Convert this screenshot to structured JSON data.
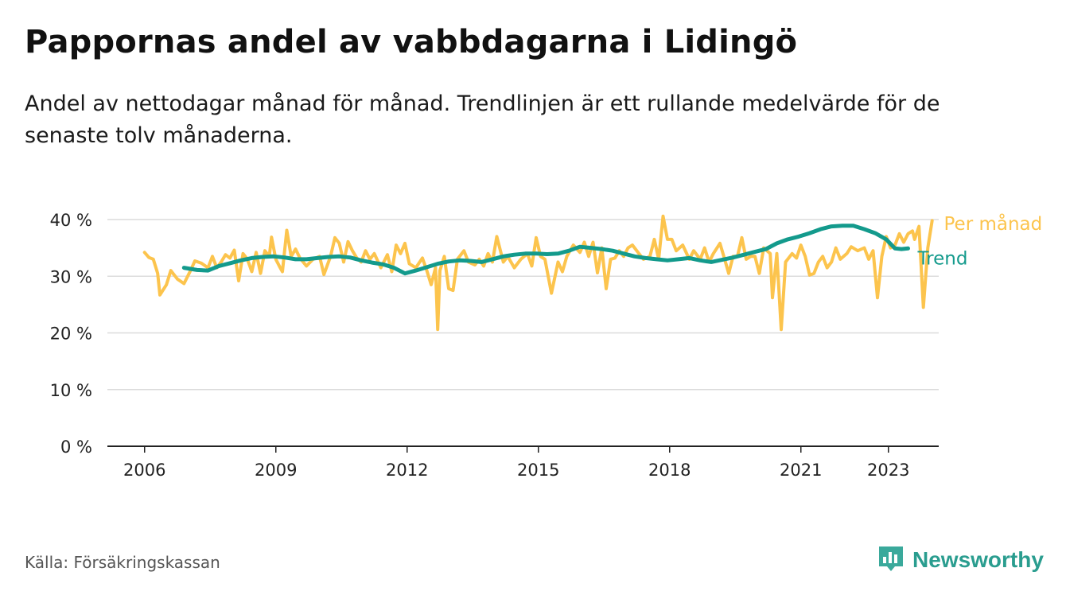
{
  "title": "Pappornas andel av vabbdagarna i Lidingö",
  "subtitle": "Andel av nettodagar månad för månad. Trendlinjen är ett rullande medelvärde för de senaste tolv månaderna.",
  "source": "Källa: Försäkringskassan",
  "brand": {
    "name": "Newsworthy",
    "icon": "newsworthy-logo-icon"
  },
  "colors": {
    "monthly": "#fcc44d",
    "trend": "#139a8c",
    "brand": "#2a9d8f",
    "grid": "#dcdcdc",
    "axis": "#222222"
  },
  "chart_data": {
    "type": "line",
    "x_unit": "year (decimal)",
    "ylim": [
      0,
      40
    ],
    "yticks": [
      0,
      10,
      20,
      30,
      40
    ],
    "ytick_labels": [
      "0 %",
      "10 %",
      "20 %",
      "30 %",
      "40 %"
    ],
    "xlim": [
      2005.15,
      2024.15
    ],
    "xticks": [
      2006,
      2009,
      2012,
      2015,
      2018,
      2021,
      2023
    ],
    "xtick_labels": [
      "2006",
      "2009",
      "2012",
      "2015",
      "2018",
      "2021",
      "2023"
    ],
    "grid": true,
    "series": [
      {
        "name": "Per månad",
        "color": "#fcc44d",
        "points": [
          [
            2006.0,
            34.2
          ],
          [
            2006.1,
            33.3
          ],
          [
            2006.2,
            33.0
          ],
          [
            2006.3,
            30.5
          ],
          [
            2006.35,
            26.7
          ],
          [
            2006.5,
            28.5
          ],
          [
            2006.6,
            31.0
          ],
          [
            2006.75,
            29.5
          ],
          [
            2006.9,
            28.7
          ],
          [
            2007.05,
            31.0
          ],
          [
            2007.15,
            32.7
          ],
          [
            2007.3,
            32.3
          ],
          [
            2007.45,
            31.5
          ],
          [
            2007.55,
            33.5
          ],
          [
            2007.65,
            31.5
          ],
          [
            2007.75,
            32.5
          ],
          [
            2007.85,
            33.8
          ],
          [
            2007.95,
            33.2
          ],
          [
            2008.05,
            34.6
          ],
          [
            2008.15,
            29.2
          ],
          [
            2008.25,
            34.0
          ],
          [
            2008.35,
            33.0
          ],
          [
            2008.45,
            30.8
          ],
          [
            2008.55,
            34.2
          ],
          [
            2008.65,
            30.5
          ],
          [
            2008.75,
            34.5
          ],
          [
            2008.85,
            33.5
          ],
          [
            2008.9,
            36.9
          ],
          [
            2009.0,
            33.0
          ],
          [
            2009.1,
            31.5
          ],
          [
            2009.15,
            30.8
          ],
          [
            2009.25,
            38.1
          ],
          [
            2009.35,
            33.5
          ],
          [
            2009.45,
            34.8
          ],
          [
            2009.55,
            33.2
          ],
          [
            2009.7,
            31.8
          ],
          [
            2009.85,
            33.0
          ],
          [
            2010.0,
            33.5
          ],
          [
            2010.1,
            30.3
          ],
          [
            2010.25,
            33.5
          ],
          [
            2010.35,
            36.8
          ],
          [
            2010.45,
            35.8
          ],
          [
            2010.55,
            32.5
          ],
          [
            2010.65,
            36.1
          ],
          [
            2010.75,
            34.5
          ],
          [
            2010.85,
            33.2
          ],
          [
            2010.95,
            32.5
          ],
          [
            2011.05,
            34.5
          ],
          [
            2011.15,
            33.0
          ],
          [
            2011.25,
            34.0
          ],
          [
            2011.4,
            31.5
          ],
          [
            2011.55,
            33.8
          ],
          [
            2011.65,
            30.8
          ],
          [
            2011.75,
            35.5
          ],
          [
            2011.85,
            34.0
          ],
          [
            2011.95,
            35.8
          ],
          [
            2012.05,
            32.2
          ],
          [
            2012.2,
            31.5
          ],
          [
            2012.35,
            33.2
          ],
          [
            2012.45,
            31.0
          ],
          [
            2012.55,
            28.5
          ],
          [
            2012.65,
            31.5
          ],
          [
            2012.7,
            20.6
          ],
          [
            2012.75,
            31.0
          ],
          [
            2012.85,
            33.5
          ],
          [
            2012.95,
            27.8
          ],
          [
            2013.05,
            27.5
          ],
          [
            2013.15,
            33.0
          ],
          [
            2013.3,
            34.5
          ],
          [
            2013.4,
            32.5
          ],
          [
            2013.55,
            32.0
          ],
          [
            2013.65,
            33.0
          ],
          [
            2013.75,
            31.8
          ],
          [
            2013.85,
            34.0
          ],
          [
            2013.95,
            32.5
          ],
          [
            2014.05,
            37.0
          ],
          [
            2014.2,
            32.5
          ],
          [
            2014.3,
            33.5
          ],
          [
            2014.45,
            31.5
          ],
          [
            2014.6,
            33.0
          ],
          [
            2014.75,
            34.0
          ],
          [
            2014.85,
            31.8
          ],
          [
            2014.95,
            36.8
          ],
          [
            2015.05,
            33.5
          ],
          [
            2015.15,
            33.0
          ],
          [
            2015.3,
            27.0
          ],
          [
            2015.45,
            32.5
          ],
          [
            2015.55,
            30.8
          ],
          [
            2015.65,
            33.5
          ],
          [
            2015.8,
            35.5
          ],
          [
            2015.95,
            34.2
          ],
          [
            2016.05,
            36.0
          ],
          [
            2016.15,
            33.5
          ],
          [
            2016.25,
            36.0
          ],
          [
            2016.35,
            30.6
          ],
          [
            2016.45,
            35.0
          ],
          [
            2016.55,
            27.8
          ],
          [
            2016.65,
            33.0
          ],
          [
            2016.75,
            33.2
          ],
          [
            2016.85,
            34.5
          ],
          [
            2016.95,
            33.5
          ],
          [
            2017.05,
            35.0
          ],
          [
            2017.15,
            35.5
          ],
          [
            2017.3,
            34.0
          ],
          [
            2017.4,
            33.0
          ],
          [
            2017.55,
            33.5
          ],
          [
            2017.65,
            36.5
          ],
          [
            2017.75,
            33.0
          ],
          [
            2017.85,
            40.6
          ],
          [
            2017.95,
            36.5
          ],
          [
            2018.05,
            36.5
          ],
          [
            2018.15,
            34.5
          ],
          [
            2018.3,
            35.5
          ],
          [
            2018.45,
            33.0
          ],
          [
            2018.55,
            34.5
          ],
          [
            2018.7,
            33.0
          ],
          [
            2018.8,
            35.0
          ],
          [
            2018.9,
            32.5
          ],
          [
            2019.0,
            34.0
          ],
          [
            2019.15,
            35.8
          ],
          [
            2019.25,
            33.2
          ],
          [
            2019.35,
            30.5
          ],
          [
            2019.45,
            33.5
          ],
          [
            2019.55,
            33.5
          ],
          [
            2019.65,
            36.8
          ],
          [
            2019.75,
            33.0
          ],
          [
            2019.85,
            33.5
          ],
          [
            2019.95,
            33.5
          ],
          [
            2020.05,
            30.5
          ],
          [
            2020.15,
            35.0
          ],
          [
            2020.3,
            34.0
          ],
          [
            2020.35,
            26.2
          ],
          [
            2020.45,
            34.0
          ],
          [
            2020.55,
            20.6
          ],
          [
            2020.65,
            32.5
          ],
          [
            2020.8,
            34.0
          ],
          [
            2020.9,
            33.2
          ],
          [
            2021.0,
            35.5
          ],
          [
            2021.1,
            33.5
          ],
          [
            2021.2,
            30.2
          ],
          [
            2021.3,
            30.5
          ],
          [
            2021.4,
            32.5
          ],
          [
            2021.5,
            33.5
          ],
          [
            2021.6,
            31.5
          ],
          [
            2021.7,
            32.5
          ],
          [
            2021.8,
            35.0
          ],
          [
            2021.9,
            33.0
          ],
          [
            2022.05,
            34.0
          ],
          [
            2022.15,
            35.2
          ],
          [
            2022.3,
            34.5
          ],
          [
            2022.45,
            35.0
          ],
          [
            2022.55,
            33.0
          ],
          [
            2022.65,
            34.5
          ],
          [
            2022.75,
            26.2
          ],
          [
            2022.85,
            33.5
          ],
          [
            2022.95,
            37.0
          ],
          [
            2023.05,
            35.0
          ],
          [
            2023.15,
            35.5
          ],
          [
            2023.25,
            37.5
          ],
          [
            2023.35,
            36.0
          ],
          [
            2023.45,
            37.5
          ],
          [
            2023.55,
            38.0
          ],
          [
            2023.6,
            36.5
          ],
          [
            2023.7,
            38.8
          ],
          [
            2023.8,
            24.5
          ],
          [
            2023.9,
            35.0
          ],
          [
            2024.0,
            39.8
          ]
        ]
      },
      {
        "name": "Trend",
        "color": "#139a8c",
        "points": [
          [
            2006.9,
            31.5
          ],
          [
            2007.2,
            31.1
          ],
          [
            2007.45,
            31.0
          ],
          [
            2007.7,
            31.8
          ],
          [
            2007.95,
            32.3
          ],
          [
            2008.2,
            32.8
          ],
          [
            2008.45,
            33.2
          ],
          [
            2008.7,
            33.4
          ],
          [
            2008.95,
            33.5
          ],
          [
            2009.2,
            33.3
          ],
          [
            2009.45,
            33.0
          ],
          [
            2009.7,
            33.0
          ],
          [
            2009.95,
            33.2
          ],
          [
            2010.2,
            33.4
          ],
          [
            2010.45,
            33.5
          ],
          [
            2010.7,
            33.3
          ],
          [
            2010.95,
            32.8
          ],
          [
            2011.2,
            32.4
          ],
          [
            2011.45,
            32.1
          ],
          [
            2011.7,
            31.5
          ],
          [
            2011.95,
            30.5
          ],
          [
            2012.2,
            31.0
          ],
          [
            2012.45,
            31.6
          ],
          [
            2012.7,
            32.2
          ],
          [
            2012.95,
            32.6
          ],
          [
            2013.2,
            32.8
          ],
          [
            2013.45,
            32.7
          ],
          [
            2013.7,
            32.5
          ],
          [
            2013.95,
            33.0
          ],
          [
            2014.2,
            33.5
          ],
          [
            2014.45,
            33.8
          ],
          [
            2014.7,
            34.0
          ],
          [
            2014.95,
            34.0
          ],
          [
            2015.2,
            33.9
          ],
          [
            2015.45,
            34.0
          ],
          [
            2015.7,
            34.5
          ],
          [
            2015.95,
            35.2
          ],
          [
            2016.2,
            35.0
          ],
          [
            2016.45,
            34.8
          ],
          [
            2016.7,
            34.5
          ],
          [
            2016.95,
            34.0
          ],
          [
            2017.2,
            33.5
          ],
          [
            2017.45,
            33.2
          ],
          [
            2017.7,
            33.0
          ],
          [
            2017.95,
            32.8
          ],
          [
            2018.2,
            33.0
          ],
          [
            2018.45,
            33.2
          ],
          [
            2018.7,
            32.8
          ],
          [
            2018.95,
            32.5
          ],
          [
            2019.2,
            32.9
          ],
          [
            2019.45,
            33.3
          ],
          [
            2019.7,
            33.8
          ],
          [
            2019.95,
            34.3
          ],
          [
            2020.2,
            34.8
          ],
          [
            2020.45,
            35.8
          ],
          [
            2020.7,
            36.5
          ],
          [
            2020.95,
            37.0
          ],
          [
            2021.2,
            37.6
          ],
          [
            2021.45,
            38.3
          ],
          [
            2021.7,
            38.8
          ],
          [
            2021.95,
            38.9
          ],
          [
            2022.2,
            38.9
          ],
          [
            2022.45,
            38.3
          ],
          [
            2022.7,
            37.6
          ],
          [
            2022.95,
            36.5
          ],
          [
            2023.15,
            34.9
          ],
          [
            2023.3,
            34.8
          ],
          [
            2023.45,
            34.9
          ]
        ]
      }
    ]
  }
}
